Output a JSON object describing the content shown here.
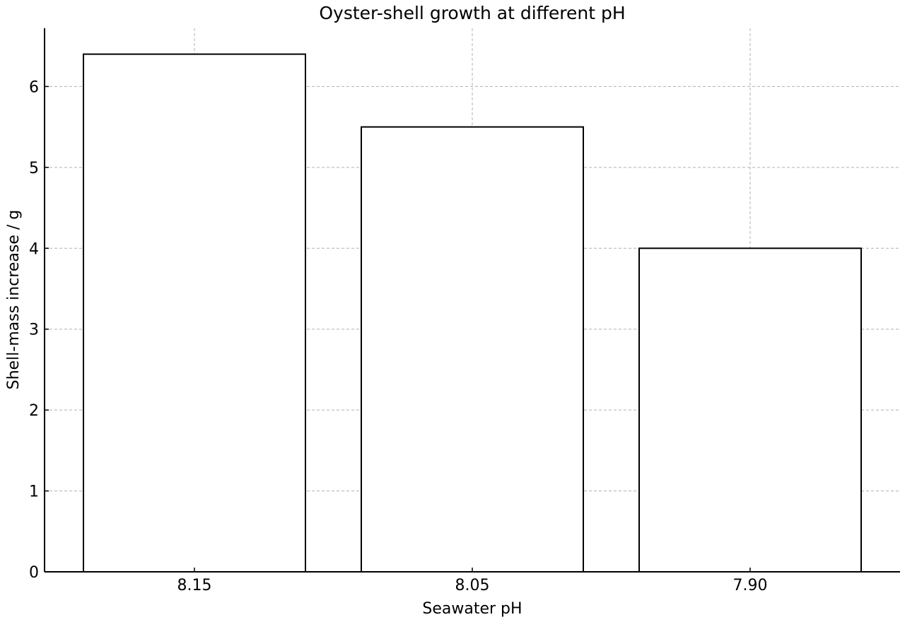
{
  "chart_data": {
    "type": "bar",
    "title": "Oyster-shell growth at different pH",
    "xlabel": "Seawater pH",
    "ylabel": "Shell-mass increase / g",
    "categories": [
      "8.15",
      "8.05",
      "7.90"
    ],
    "values": [
      6.4,
      5.5,
      4.0
    ],
    "ylim": [
      0,
      6.72
    ],
    "yticks": [
      "0",
      "1",
      "2",
      "3",
      "4",
      "5",
      "6"
    ],
    "grid": true,
    "colors": {
      "bar_fill": "#ffffff",
      "bar_edge": "#000000",
      "grid": "#b0b0b0"
    }
  }
}
